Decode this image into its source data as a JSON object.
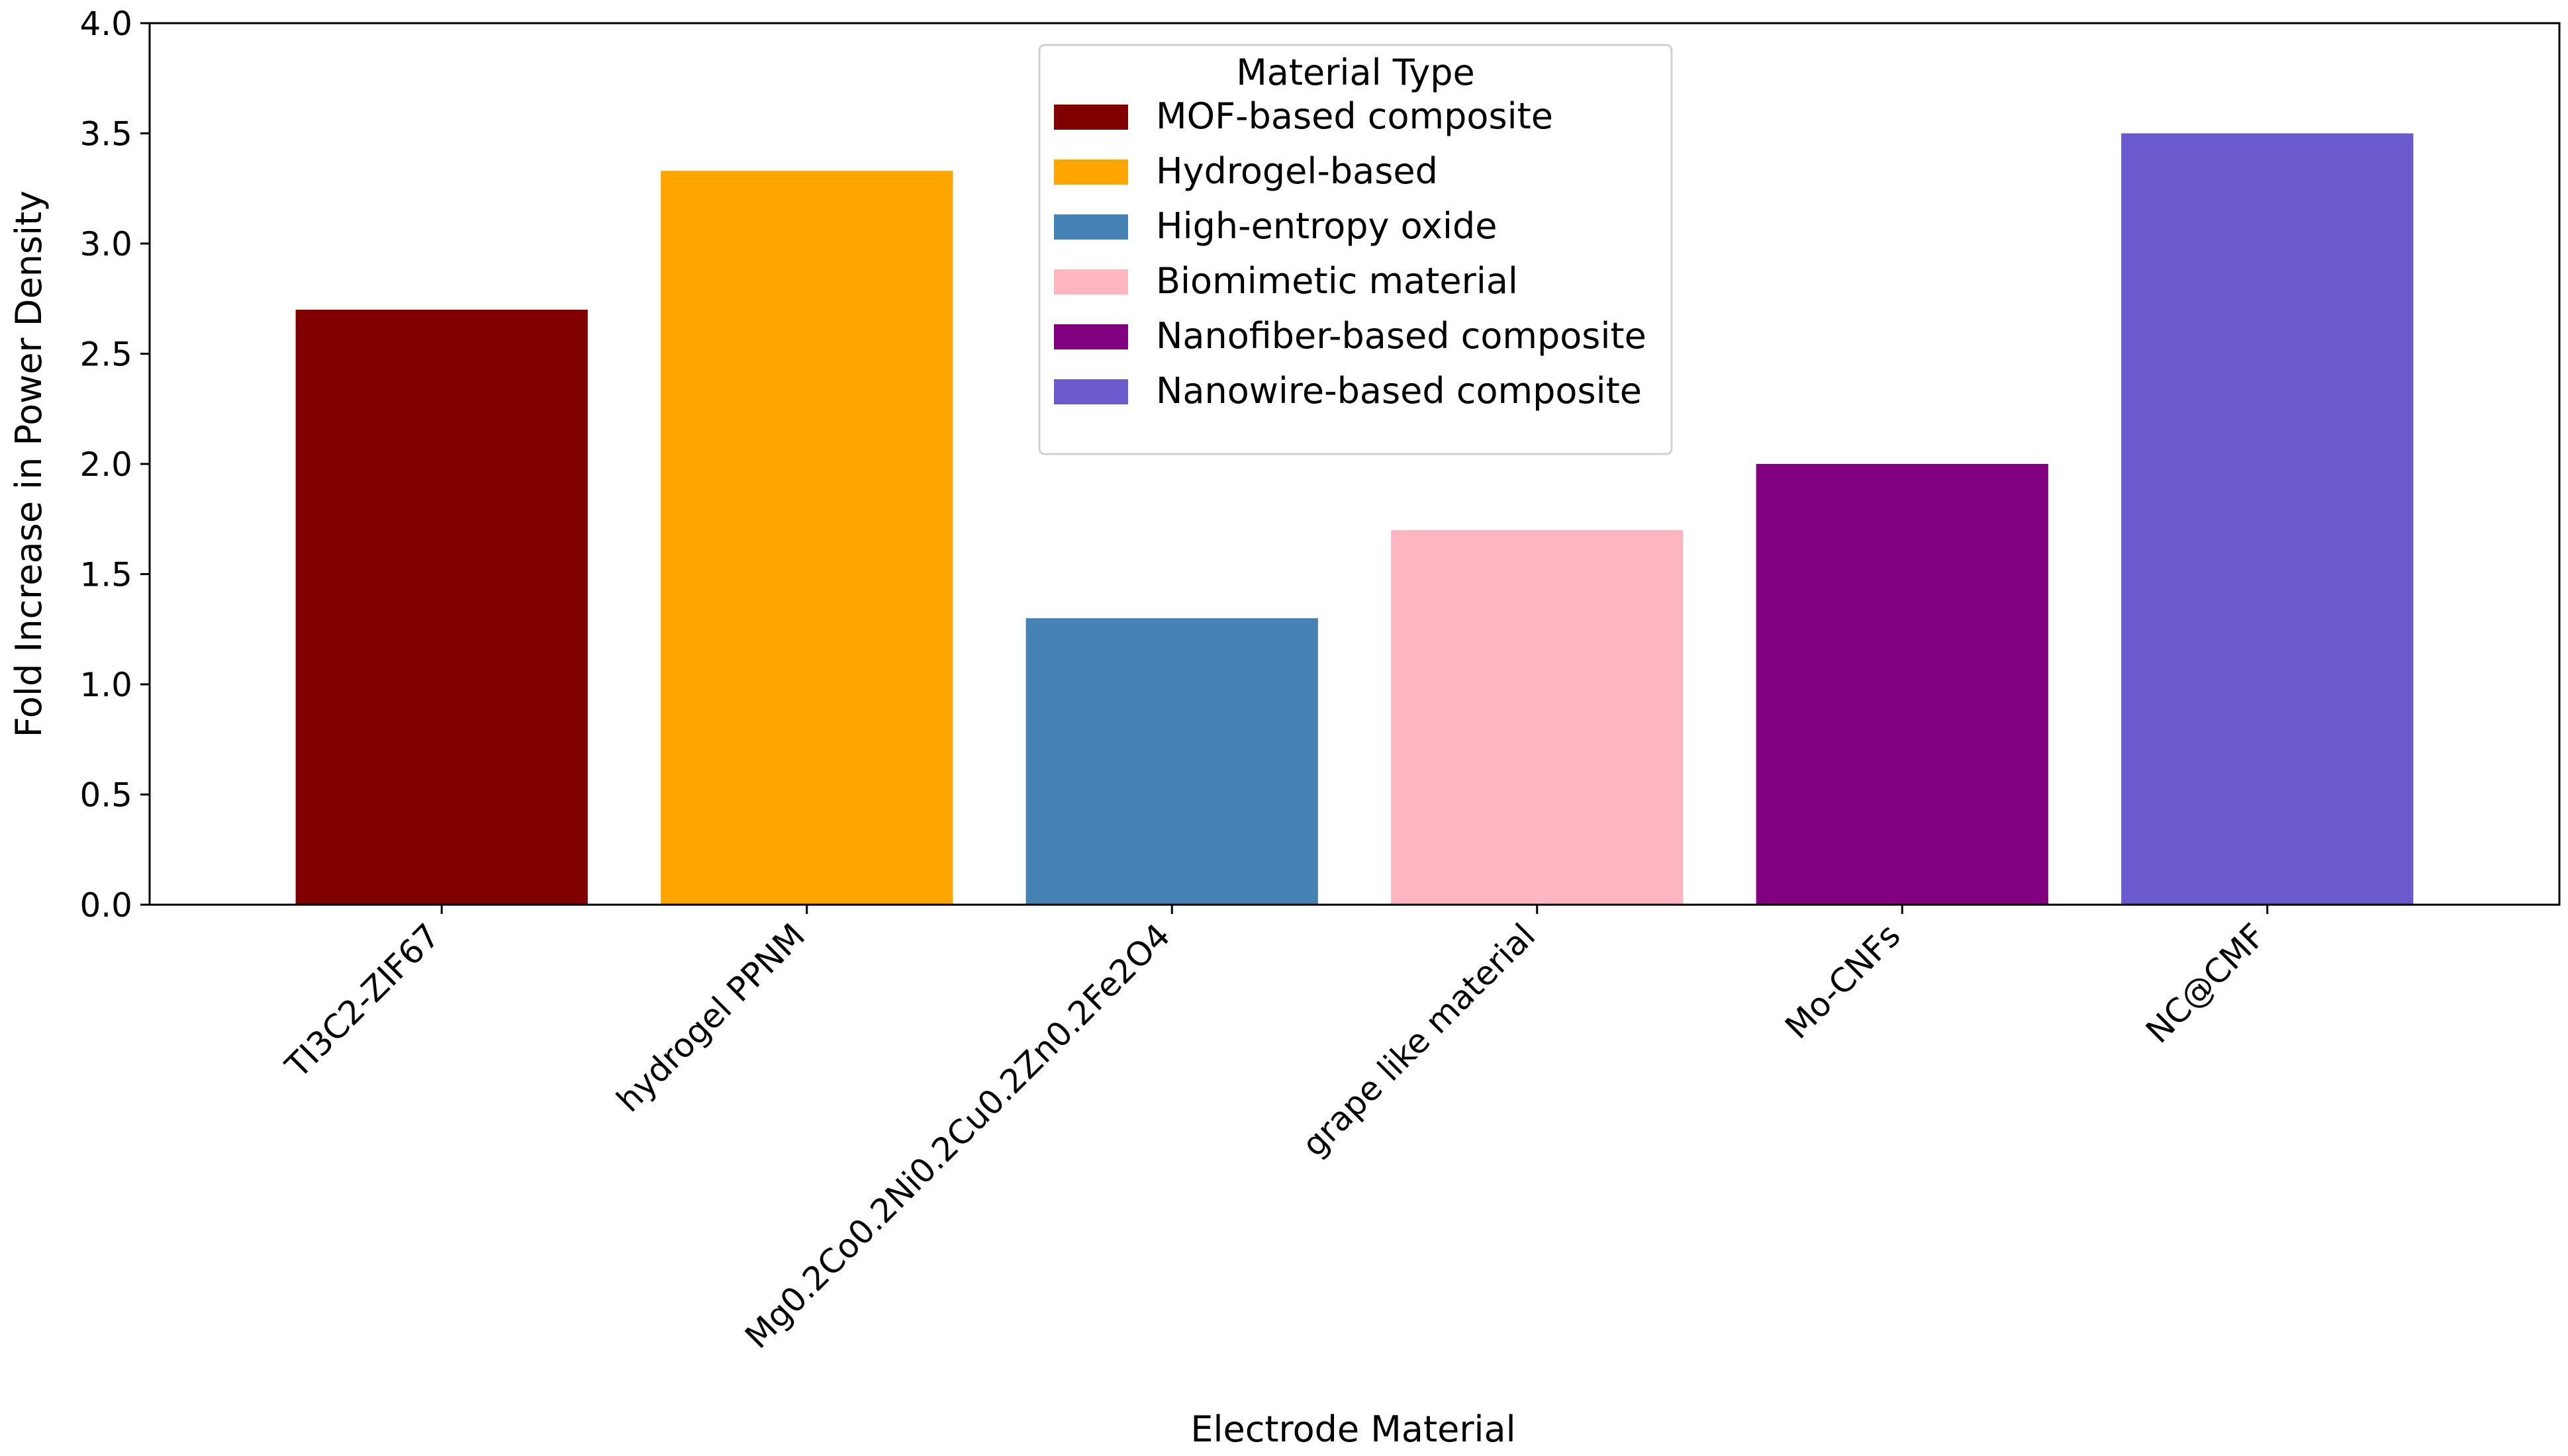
{
  "chart_data": {
    "type": "bar",
    "title": "",
    "xlabel": "Electrode Material",
    "ylabel": "Fold Increase in Power Density",
    "ylim": [
      0,
      4.0
    ],
    "yticks": [
      "0.0",
      "0.5",
      "1.0",
      "1.5",
      "2.0",
      "2.5",
      "3.0",
      "3.5",
      "4.0"
    ],
    "grid": false,
    "categories": [
      "TI3C2-ZIF67",
      "hydrogel PPNM",
      "Mg0.2Co0.2Ni0.2Cu0.2Zn0.2Fe2O4",
      "grape like material",
      "Mo-CNFs",
      "NC@CMF"
    ],
    "values": [
      2.7,
      3.33,
      1.3,
      1.7,
      2.0,
      3.5
    ],
    "bar_colors": [
      "#800000",
      "#FFA500",
      "#4682B4",
      "#FFB6C1",
      "#800080",
      "#6A5ACD"
    ],
    "legend": {
      "title": "Material Type",
      "placement": "top-center",
      "entries": [
        {
          "label": "MOF-based composite",
          "color": "#800000"
        },
        {
          "label": "Hydrogel-based",
          "color": "#FFA500"
        },
        {
          "label": "High-entropy oxide",
          "color": "#4682B4"
        },
        {
          "label": "Biomimetic material",
          "color": "#FFB6C1"
        },
        {
          "label": "Nanofiber-based composite",
          "color": "#800080"
        },
        {
          "label": "Nanowire-based composite",
          "color": "#6A5ACD"
        }
      ]
    }
  }
}
